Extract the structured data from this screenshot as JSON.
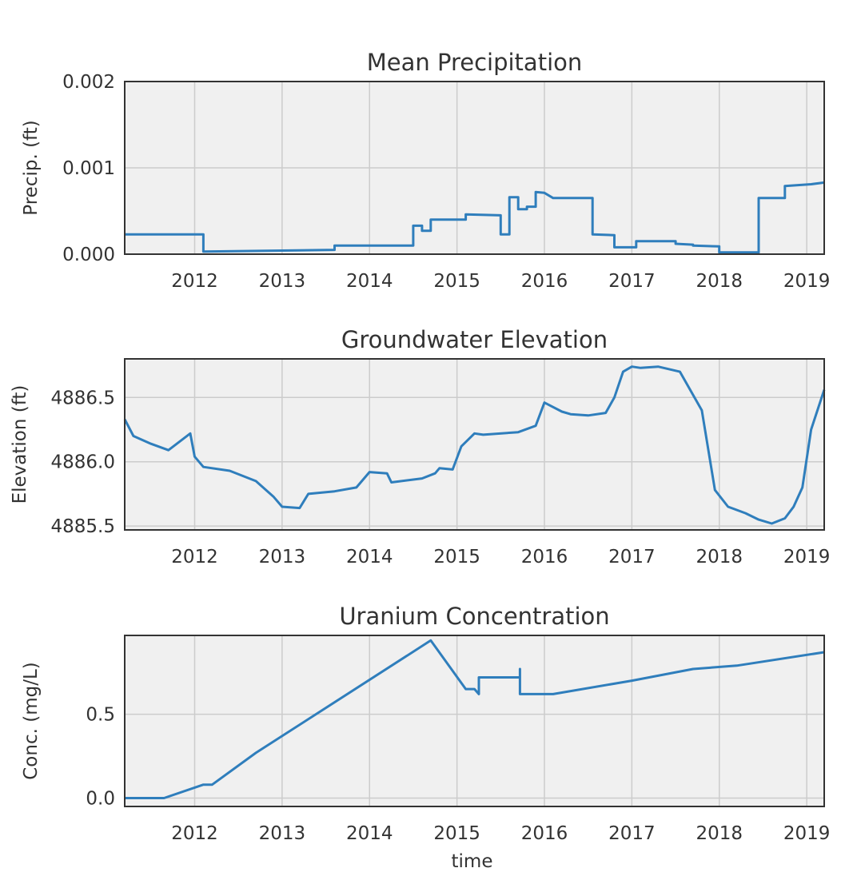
{
  "chart_data": [
    {
      "type": "line",
      "title": "Mean Precipitation",
      "ylabel": "Precip. (ft)",
      "xlabel": "",
      "xlim": [
        2011.2,
        2019.2
      ],
      "ylim": [
        0.0,
        0.002
      ],
      "grid": true,
      "color": "#2f7ebc",
      "x_ticks": [
        "2012",
        "2013",
        "2014",
        "2015",
        "2016",
        "2017",
        "2018",
        "2019"
      ],
      "y_ticks": [
        "0.000",
        "0.001",
        "0.002"
      ],
      "series": [
        {
          "x": [
            2011.2,
            2011.6,
            2012.1,
            2012.1,
            2013.6,
            2013.6,
            2014.5,
            2014.5,
            2014.6,
            2014.6,
            2014.7,
            2014.7,
            2015.1,
            2015.1,
            2015.5,
            2015.5,
            2015.6,
            2015.6,
            2015.7,
            2015.7,
            2015.8,
            2015.8,
            2015.9,
            2015.9,
            2016.0,
            2016.1,
            2016.55,
            2016.55,
            2016.8,
            2016.8,
            2017.05,
            2017.05,
            2017.5,
            2017.5,
            2017.7,
            2017.7,
            2018.0,
            2018.0,
            2018.45,
            2018.45,
            2018.75,
            2018.75,
            2019.05,
            2019.2
          ],
          "y": [
            0.00023,
            0.00023,
            0.00023,
            3e-05,
            5e-05,
            0.0001,
            0.0001,
            0.00033,
            0.00033,
            0.00027,
            0.00027,
            0.0004,
            0.0004,
            0.00046,
            0.00045,
            0.00023,
            0.00023,
            0.00066,
            0.00066,
            0.00052,
            0.00052,
            0.00055,
            0.00055,
            0.00072,
            0.00071,
            0.00065,
            0.00065,
            0.00023,
            0.00022,
            8e-05,
            8e-05,
            0.00015,
            0.00015,
            0.00012,
            0.00011,
            0.0001,
            9e-05,
            2e-05,
            2e-05,
            0.00065,
            0.00065,
            0.00079,
            0.00081,
            0.00083
          ]
        }
      ]
    },
    {
      "type": "line",
      "title": "Groundwater Elevation",
      "ylabel": "Elevation (ft)",
      "xlabel": "",
      "xlim": [
        2011.2,
        2019.2
      ],
      "ylim": [
        4885.47,
        4886.8
      ],
      "grid": true,
      "color": "#2f7ebc",
      "x_ticks": [
        "2012",
        "2013",
        "2014",
        "2015",
        "2016",
        "2017",
        "2018",
        "2019"
      ],
      "y_ticks": [
        "4885.5",
        "4886.0",
        "4886.5"
      ],
      "series": [
        {
          "x": [
            2011.2,
            2011.3,
            2011.5,
            2011.7,
            2011.95,
            2012.0,
            2012.1,
            2012.4,
            2012.7,
            2012.9,
            2013.0,
            2013.2,
            2013.3,
            2013.6,
            2013.85,
            2014.0,
            2014.2,
            2014.25,
            2014.6,
            2014.75,
            2014.8,
            2014.95,
            2015.05,
            2015.2,
            2015.3,
            2015.7,
            2015.9,
            2016.0,
            2016.2,
            2016.3,
            2016.5,
            2016.7,
            2016.8,
            2016.9,
            2017.0,
            2017.1,
            2017.3,
            2017.55,
            2017.8,
            2017.95,
            2018.1,
            2018.3,
            2018.45,
            2018.6,
            2018.75,
            2018.85,
            2018.95,
            2019.05,
            2019.2
          ],
          "y": [
            4886.33,
            4886.2,
            4886.14,
            4886.09,
            4886.22,
            4886.04,
            4885.96,
            4885.93,
            4885.85,
            4885.73,
            4885.65,
            4885.64,
            4885.75,
            4885.77,
            4885.8,
            4885.92,
            4885.91,
            4885.84,
            4885.87,
            4885.91,
            4885.95,
            4885.94,
            4886.12,
            4886.22,
            4886.21,
            4886.23,
            4886.28,
            4886.46,
            4886.39,
            4886.37,
            4886.36,
            4886.38,
            4886.5,
            4886.7,
            4886.74,
            4886.73,
            4886.74,
            4886.7,
            4886.4,
            4885.78,
            4885.65,
            4885.6,
            4885.55,
            4885.52,
            4885.56,
            4885.65,
            4885.8,
            4886.25,
            4886.56
          ]
        }
      ]
    },
    {
      "type": "line",
      "title": "Uranium Concentration",
      "ylabel": "Conc. (mg/L)",
      "xlabel": "time",
      "xlim": [
        2011.2,
        2019.2
      ],
      "ylim": [
        -0.05,
        0.97
      ],
      "grid": true,
      "color": "#2f7ebc",
      "x_ticks": [
        "2012",
        "2013",
        "2014",
        "2015",
        "2016",
        "2017",
        "2018",
        "2019"
      ],
      "y_ticks": [
        "0.0",
        "0.5"
      ],
      "series": [
        {
          "x": [
            2011.2,
            2011.65,
            2012.1,
            2012.2,
            2012.7,
            2014.7,
            2015.1,
            2015.2,
            2015.25,
            2015.25,
            2015.72,
            2015.72,
            2015.72,
            2015.8,
            2016.1,
            2017.0,
            2017.7,
            2018.2,
            2019.2
          ],
          "y": [
            0.0,
            0.0,
            0.08,
            0.08,
            0.27,
            0.94,
            0.65,
            0.65,
            0.62,
            0.72,
            0.72,
            0.77,
            0.62,
            0.62,
            0.62,
            0.7,
            0.77,
            0.79,
            0.87
          ]
        }
      ]
    }
  ]
}
